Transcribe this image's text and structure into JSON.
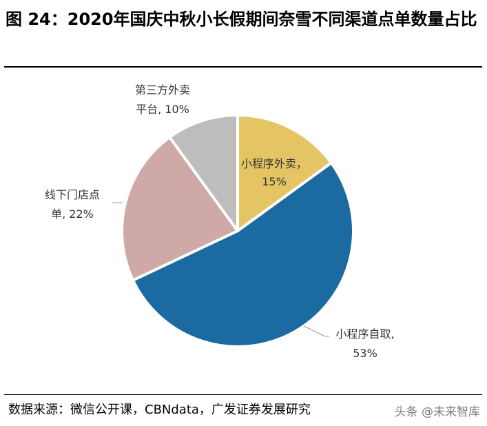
{
  "title": "图 24：2020年国庆中秋小长假期间奈雪不同渠道点单数量占比",
  "source": "数据来源：微信公开课，CBNdata，广发证券发展研究",
  "watermark": "头条 @未来智库",
  "colors": {
    "mini_program_delivery": "#E5C563",
    "mini_program_pickup": "#1C6AA2",
    "offline_store": "#CFA8A8",
    "third_party_delivery": "#BDBDBD"
  },
  "chart_data": {
    "type": "pie",
    "title": "",
    "slices": [
      {
        "label": "小程序外卖",
        "value": 15,
        "display": "15%"
      },
      {
        "label": "小程序自取",
        "value": 53,
        "display": "53%"
      },
      {
        "label": "线下门店点单",
        "value": 22,
        "display": "22%"
      },
      {
        "label": "第三方外卖平台",
        "value": 10,
        "display": "10%"
      }
    ],
    "legend": "none"
  }
}
